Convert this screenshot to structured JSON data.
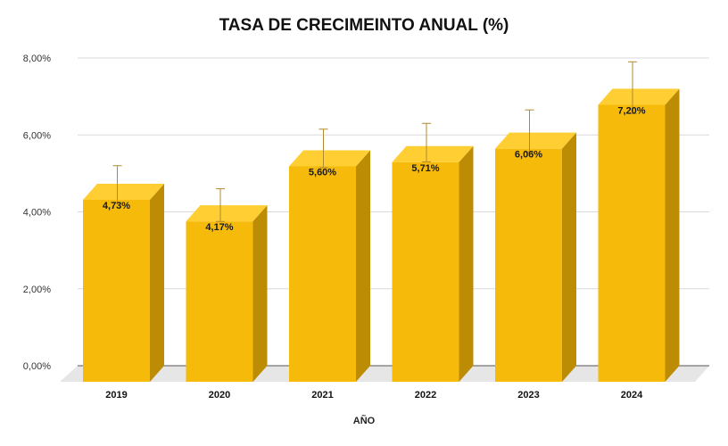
{
  "chart_data": {
    "type": "bar",
    "title": "TASA DE CRECIMEINTO ANUAL (%)",
    "xlabel": "AÑO",
    "ylabel": "",
    "categories": [
      "2019",
      "2020",
      "2021",
      "2022",
      "2023",
      "2024"
    ],
    "values": [
      4.73,
      4.17,
      5.6,
      5.71,
      6.06,
      7.2
    ],
    "data_labels": [
      "4,73%",
      "4,17%",
      "5,60%",
      "5,71%",
      "6,06%",
      "7,20%"
    ],
    "error_bar_upper": [
      5.2,
      4.6,
      6.15,
      6.3,
      6.65,
      7.9
    ],
    "error_bar_lower": [
      4.25,
      3.75,
      5.15,
      5.3,
      5.55,
      6.55
    ],
    "ylim": [
      0,
      8
    ],
    "yticks": [
      0,
      2,
      4,
      6,
      8
    ],
    "ytick_labels": [
      "0,00%",
      "2,00%",
      "4,00%",
      "6,00%",
      "8,00%"
    ],
    "grid": true,
    "legend": "none",
    "colors": {
      "bar_front": "#F6BA0A",
      "bar_side": "#BC8C05",
      "bar_top": "#FFCE32",
      "floor": "#E6E6E6",
      "grid": "#D9D9D9",
      "error_bar": "#B08A2E"
    }
  }
}
